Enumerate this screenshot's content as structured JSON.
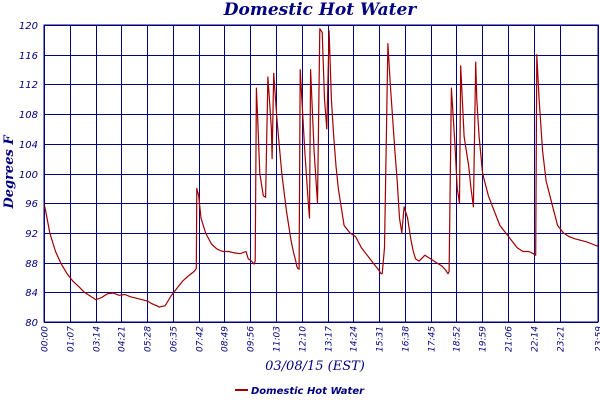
{
  "chart_data": {
    "type": "line",
    "title": "Domestic Hot Water",
    "xlabel": "03/08/15 (EST)",
    "ylabel": "Degrees F",
    "ylim": [
      80,
      120
    ],
    "yticks": [
      80,
      84,
      88,
      92,
      96,
      100,
      104,
      108,
      112,
      116,
      120
    ],
    "xlim_hours": [
      0,
      24
    ],
    "xtick_labels": [
      "00:00",
      "01:07",
      "03:14",
      "04:21",
      "05:28",
      "06:35",
      "07:42",
      "08:49",
      "09:56",
      "11:03",
      "12:10",
      "13:17",
      "14:24",
      "15:31",
      "16:38",
      "17:45",
      "18:52",
      "19:59",
      "21:06",
      "22:14",
      "23:21",
      "23:59"
    ],
    "xtick_hours": [
      0,
      1.117,
      2.233,
      3.35,
      4.467,
      5.583,
      6.7,
      7.817,
      8.933,
      10.05,
      11.167,
      12.283,
      13.4,
      14.517,
      15.633,
      16.75,
      17.867,
      18.983,
      20.1,
      21.233,
      22.35,
      23.983
    ],
    "grid": true,
    "legend_position": "bottom-center",
    "series": [
      {
        "name": "Domestic Hot Water",
        "color": "#a00000",
        "x": [
          0,
          0.1,
          0.25,
          0.5,
          0.75,
          1,
          1.25,
          1.5,
          1.75,
          2,
          2.25,
          2.5,
          2.75,
          3,
          3.25,
          3.5,
          3.75,
          4,
          4.25,
          4.5,
          4.65,
          4.8,
          5,
          5.25,
          5.5,
          5.75,
          6,
          6.25,
          6.5,
          6.6,
          6.62,
          6.7,
          6.8,
          7,
          7.25,
          7.5,
          7.75,
          8,
          8.25,
          8.5,
          8.75,
          8.85,
          8.95,
          9.05,
          9.1,
          9.15,
          9.2,
          9.25,
          9.35,
          9.5,
          9.6,
          9.7,
          9.85,
          9.88,
          9.95,
          10.1,
          10.3,
          10.5,
          10.6,
          10.7,
          10.8,
          10.9,
          10.95,
          11.0,
          11.05,
          11.1,
          11.3,
          11.45,
          11.5,
          11.55,
          11.7,
          11.85,
          11.95,
          12.05,
          12.15,
          12.25,
          12.35,
          12.45,
          12.55,
          12.65,
          12.75,
          12.85,
          13.0,
          13.25,
          13.5,
          13.75,
          14.0,
          14.25,
          14.5,
          14.6,
          14.65,
          14.75,
          14.9,
          15.0,
          15.2,
          15.3,
          15.4,
          15.5,
          15.6,
          15.75,
          15.9,
          16.0,
          16.1,
          16.25,
          16.5,
          16.75,
          17.0,
          17.25,
          17.4,
          17.5,
          17.55,
          17.65,
          17.8,
          17.9,
          18.0,
          18.05,
          18.2,
          18.4,
          18.5,
          18.6,
          18.7,
          18.75,
          18.85,
          19.0,
          19.25,
          19.5,
          19.75,
          20.0,
          20.25,
          20.5,
          20.75,
          21.0,
          21.2,
          21.3,
          21.35,
          21.45,
          21.6,
          21.75,
          22.0,
          22.25,
          22.5,
          22.75,
          23.0,
          23.25,
          23.5,
          23.75,
          24.0
        ],
        "y": [
          96,
          94.5,
          92,
          89.5,
          87.8,
          86.5,
          85.5,
          84.8,
          84,
          83.5,
          83,
          83.3,
          83.8,
          83.9,
          83.6,
          83.7,
          83.4,
          83.2,
          83,
          82.8,
          82.5,
          82.3,
          82,
          82.2,
          83.5,
          84.5,
          85.5,
          86.2,
          86.8,
          87.2,
          98,
          97,
          94,
          92,
          90.5,
          89.8,
          89.5,
          89.5,
          89.3,
          89.2,
          89.5,
          88.5,
          88.3,
          88,
          87.8,
          88.2,
          111.5,
          108,
          100,
          97,
          96.8,
          113,
          106,
          102,
          113.5,
          107,
          100,
          95,
          93,
          91,
          89.5,
          88.3,
          87.5,
          87.2,
          87.1,
          114,
          103,
          96,
          94,
          114,
          103,
          96,
          119.5,
          119,
          110,
          106,
          119.2,
          110,
          105,
          101,
          98,
          96,
          93,
          92,
          91.5,
          90,
          89,
          88,
          87,
          86.5,
          86.5,
          90,
          117.5,
          112,
          103,
          99,
          94,
          92,
          95.5,
          94,
          91,
          89.5,
          88.5,
          88.2,
          89,
          88.5,
          88,
          87.5,
          87,
          86.5,
          86.8,
          111.5,
          104,
          98,
          96,
          114.5,
          105,
          101,
          98,
          95.5,
          115,
          110,
          105,
          100,
          97,
          95,
          93,
          92,
          91,
          90,
          89.5,
          89.5,
          89.2,
          89,
          116,
          110,
          103,
          99,
          96,
          93,
          92,
          91.5,
          91.2,
          91,
          90.8,
          90.5,
          90.2
        ]
      }
    ]
  }
}
